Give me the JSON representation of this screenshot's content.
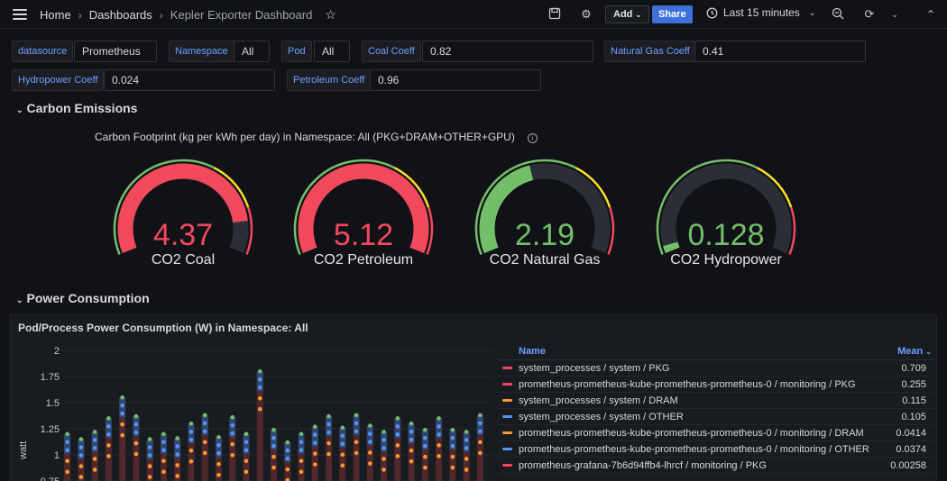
{
  "breadcrumb": {
    "home": "Home",
    "dashboards": "Dashboards",
    "current": "Kepler Exporter Dashboard"
  },
  "toolbar": {
    "add_label": "Add",
    "share_label": "Share",
    "time_range": "Last 15 minutes"
  },
  "variables": {
    "datasource": {
      "label": "datasource",
      "value": "Prometheus"
    },
    "namespace": {
      "label": "Namespace",
      "value": "All"
    },
    "pod": {
      "label": "Pod",
      "value": "All"
    },
    "coal": {
      "label": "Coal Coeff",
      "value": "0.82"
    },
    "natural_gas": {
      "label": "Natural Gas Coeff",
      "value": "0.41"
    },
    "hydropower": {
      "label": "Hydropower Coeff",
      "value": "0.024"
    },
    "petroleum": {
      "label": "Petroleum Coeff",
      "value": "0.96"
    }
  },
  "rows": {
    "carbon": "Carbon Emissions",
    "power": "Power Consumption"
  },
  "gauge_panel_title": "Carbon Footprint (kg per kWh per day) in Namespace: All (PKG+DRAM+OTHER+GPU)",
  "gauges": [
    {
      "label": "CO2 Coal",
      "value": "4.37",
      "fraction": 0.87,
      "color": "#f2495c"
    },
    {
      "label": "CO2 Petroleum",
      "value": "5.12",
      "fraction": 1.0,
      "color": "#f2495c"
    },
    {
      "label": "CO2 Natural Gas",
      "value": "2.19",
      "fraction": 0.44,
      "color": "#73bf69"
    },
    {
      "label": "CO2 Hydropower",
      "value": "0.128",
      "fraction": 0.03,
      "color": "#73bf69"
    }
  ],
  "colors": {
    "green": "#73bf69",
    "yellow": "#fade2a",
    "red": "#f2495c",
    "blue": "#5794f2",
    "orange": "#ff9830",
    "accent": "#3d71d9"
  },
  "power_panel": {
    "title": "Pod/Process Power Consumption (W) in Namespace: All",
    "legend_name_header": "Name",
    "legend_mean_header": "Mean",
    "legend": [
      {
        "name": "system_processes / system / PKG",
        "mean": "0.709",
        "color": "#f2495c"
      },
      {
        "name": "prometheus-prometheus-kube-prometheus-prometheus-0 / monitoring / PKG",
        "mean": "0.255",
        "color": "#f2495c"
      },
      {
        "name": "system_processes / system / DRAM",
        "mean": "0.115",
        "color": "#ff9830"
      },
      {
        "name": "system_processes / system / OTHER",
        "mean": "0.105",
        "color": "#5794f2"
      },
      {
        "name": "prometheus-prometheus-kube-prometheus-prometheus-0 / monitoring / DRAM",
        "mean": "0.0414",
        "color": "#ff9830"
      },
      {
        "name": "prometheus-prometheus-kube-prometheus-prometheus-0 / monitoring / OTHER",
        "mean": "0.0374",
        "color": "#5794f2"
      },
      {
        "name": "prometheus-grafana-7b6d94ffb4-lhrcf / monitoring / PKG",
        "mean": "0.00258",
        "color": "#f2495c"
      }
    ]
  },
  "chart_data": {
    "type": "bar",
    "ylabel": "watt",
    "yticks": [
      "2",
      "1.75",
      "1.5",
      "1.25",
      "1",
      "0.75"
    ],
    "ylim": [
      0.75,
      2
    ],
    "values": [
      1.2,
      1.15,
      1.22,
      1.35,
      1.55,
      1.37,
      1.15,
      1.2,
      1.16,
      1.3,
      1.38,
      1.17,
      1.36,
      1.2,
      1.8,
      1.24,
      1.12,
      1.2,
      1.27,
      1.37,
      1.26,
      1.38,
      1.28,
      1.22,
      1.35,
      1.3,
      1.24,
      1.35,
      1.24,
      1.22,
      1.38
    ]
  }
}
